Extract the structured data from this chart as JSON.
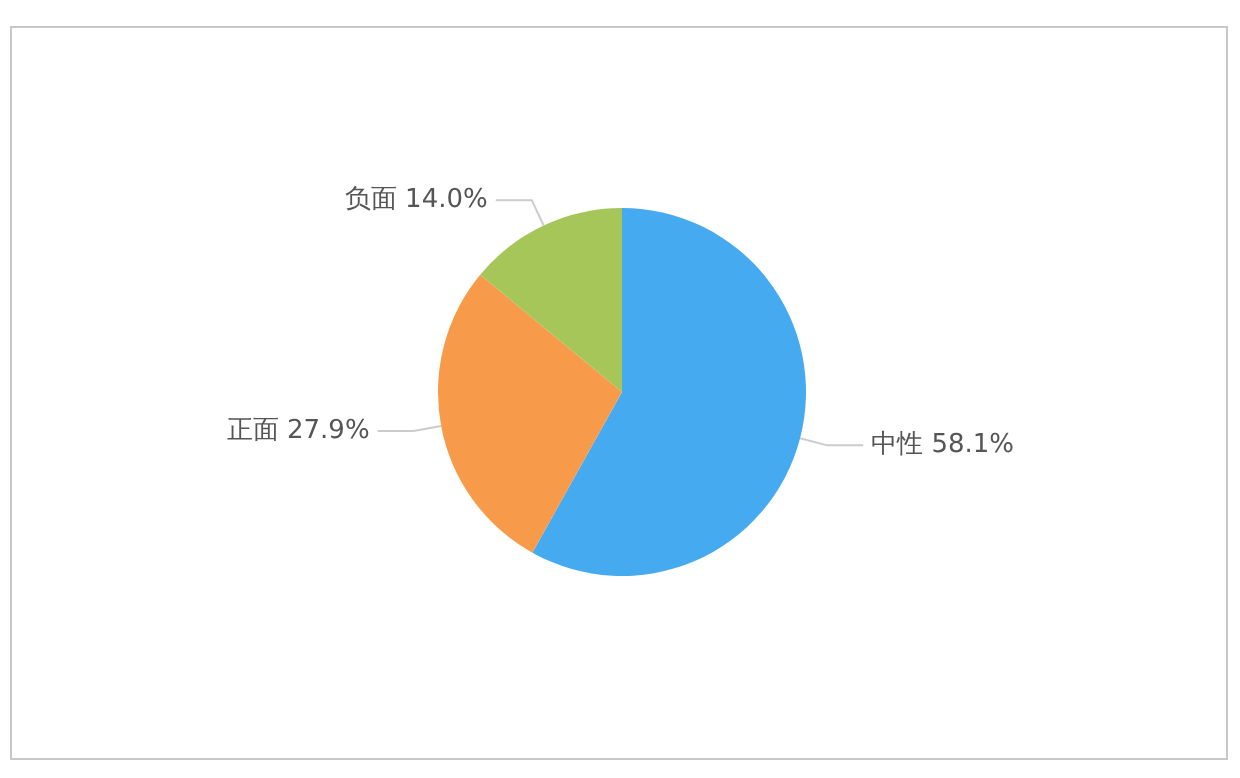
{
  "chart_data": {
    "type": "pie",
    "categories": [
      "中性",
      "正面",
      "负面"
    ],
    "values": [
      58.1,
      27.9,
      14.0
    ],
    "colors": [
      "#45aaf0",
      "#f79a4a",
      "#a6c65a"
    ],
    "value_labels": [
      "58.1%",
      "27.9%",
      "14.0%"
    ],
    "legend": false
  }
}
